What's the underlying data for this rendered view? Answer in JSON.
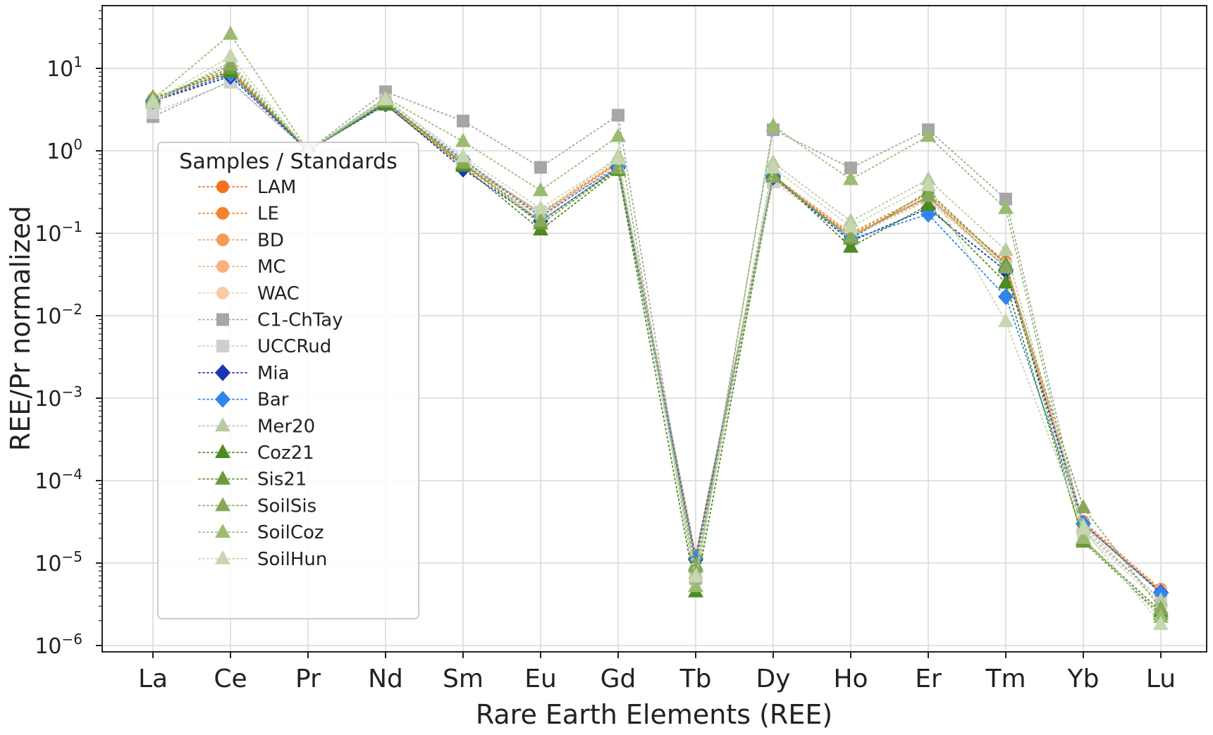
{
  "chart_data": {
    "type": "line",
    "xlabel": "Rare Earth Elements (REE)",
    "ylabel": "REE/Pr normalized",
    "yscale": "log",
    "ylim": [
      1e-06,
      50
    ],
    "yticks": [
      {
        "base": "10",
        "exp": "1",
        "value": 10
      },
      {
        "base": "10",
        "exp": "0",
        "value": 1
      },
      {
        "base": "10",
        "exp": "−1",
        "value": 0.1
      },
      {
        "base": "10",
        "exp": "−2",
        "value": 0.01
      },
      {
        "base": "10",
        "exp": "−3",
        "value": 0.001
      },
      {
        "base": "10",
        "exp": "−4",
        "value": 0.0001
      },
      {
        "base": "10",
        "exp": "−5",
        "value": 1e-05
      },
      {
        "base": "10",
        "exp": "−6",
        "value": 1e-06
      }
    ],
    "grid": true,
    "legend": {
      "title": "Samples / Standards",
      "placement": "upper-left"
    },
    "categories": [
      "La",
      "Ce",
      "Pr",
      "Nd",
      "Sm",
      "Eu",
      "Gd",
      "Tb",
      "Dy",
      "Ho",
      "Er",
      "Tm",
      "Yb",
      "Lu"
    ],
    "series": [
      {
        "name": "LAM",
        "color": "#f4701f",
        "marker": "circle",
        "values": [
          4.1,
          9.5,
          1,
          3.8,
          0.68,
          0.18,
          0.72,
          1.25e-05,
          0.48,
          0.095,
          0.27,
          0.045,
          3.2e-05,
          4.8e-06
        ]
      },
      {
        "name": "LE",
        "color": "#f4832f",
        "marker": "circle",
        "values": [
          4.2,
          9.2,
          1,
          3.9,
          0.7,
          0.17,
          0.7,
          1.2e-05,
          0.5,
          0.1,
          0.3,
          0.042,
          3e-05,
          4.6e-06
        ]
      },
      {
        "name": "BD",
        "color": "#f79a56",
        "marker": "circle",
        "values": [
          4.0,
          8.8,
          1,
          3.7,
          0.66,
          0.16,
          0.74,
          1.15e-05,
          0.46,
          0.092,
          0.26,
          0.04,
          2.9e-05,
          4.5e-06
        ]
      },
      {
        "name": "MC",
        "color": "#f8b07c",
        "marker": "circle",
        "values": [
          4.3,
          9.0,
          1,
          3.9,
          0.72,
          0.175,
          0.76,
          1.18e-05,
          0.5,
          0.098,
          0.28,
          0.043,
          3.1e-05,
          4.7e-06
        ]
      },
      {
        "name": "WAC",
        "color": "#f8cba5",
        "marker": "circle",
        "values": [
          4.0,
          8.5,
          1,
          3.6,
          0.64,
          0.15,
          0.7,
          1.1e-05,
          0.45,
          0.09,
          0.25,
          0.038,
          2.8e-05,
          4.4e-06
        ]
      },
      {
        "name": "C1-ChTay",
        "color": "#a6a6a6",
        "marker": "square",
        "values": [
          2.6,
          7.0,
          1,
          5.2,
          2.3,
          0.63,
          2.7,
          6.5e-06,
          1.8,
          0.62,
          1.8,
          0.26,
          2.5e-05,
          3.6e-06
        ]
      },
      {
        "name": "UCCRud",
        "color": "#cfcfcf",
        "marker": "square",
        "values": [
          2.9,
          6.8,
          1,
          4.1,
          0.75,
          0.18,
          0.62,
          7.2e-06,
          0.42,
          0.09,
          0.26,
          0.04,
          2.3e-05,
          3.3e-06
        ]
      },
      {
        "name": "Mia",
        "color": "#1936b3",
        "marker": "diamond",
        "values": [
          4.0,
          8.0,
          1,
          3.7,
          0.6,
          0.14,
          0.62,
          1.1e-05,
          0.48,
          0.08,
          0.2,
          0.035,
          3e-05,
          4.4e-06
        ]
      },
      {
        "name": "Bar",
        "color": "#2f86ef",
        "marker": "diamond",
        "values": [
          4.1,
          8.5,
          1,
          3.8,
          0.78,
          0.16,
          0.65,
          1.15e-05,
          0.5,
          0.085,
          0.17,
          0.017,
          3e-05,
          4.3e-06
        ]
      },
      {
        "name": "Mer20",
        "color": "#b9cba2",
        "marker": "triangle",
        "values": [
          3.8,
          12.0,
          1,
          4.3,
          0.8,
          0.17,
          0.85,
          7.5e-06,
          0.72,
          0.14,
          0.45,
          0.062,
          2.8e-05,
          3.5e-06
        ]
      },
      {
        "name": "Coz21",
        "color": "#4d8a1f",
        "marker": "triangle",
        "values": [
          4.4,
          9.0,
          1,
          3.6,
          0.65,
          0.11,
          0.58,
          4.5e-06,
          0.52,
          0.068,
          0.22,
          0.025,
          1.9e-05,
          2.6e-06
        ]
      },
      {
        "name": "Sis21",
        "color": "#6b9a3c",
        "marker": "triangle",
        "values": [
          4.3,
          10.0,
          1,
          3.9,
          0.7,
          0.13,
          0.6,
          9.5e-06,
          0.5,
          0.085,
          0.32,
          0.042,
          1.8e-05,
          2.4e-06
        ]
      },
      {
        "name": "SoilSis",
        "color": "#87a85a",
        "marker": "triangle",
        "values": [
          4.0,
          11.0,
          1,
          4.0,
          0.72,
          0.14,
          0.62,
          9e-06,
          0.48,
          0.09,
          0.28,
          0.038,
          4.7e-05,
          2.8e-06
        ]
      },
      {
        "name": "SoilCoz",
        "color": "#9bbb70",
        "marker": "triangle",
        "values": [
          4.2,
          26.0,
          1,
          4.4,
          1.3,
          0.33,
          1.5,
          5.2e-06,
          2.0,
          0.45,
          1.5,
          0.2,
          2e-05,
          2.2e-06
        ]
      },
      {
        "name": "SoilHun",
        "color": "#c6d7b0",
        "marker": "triangle",
        "values": [
          3.9,
          14.0,
          1,
          4.2,
          0.85,
          0.2,
          0.8,
          6.8e-06,
          0.62,
          0.12,
          0.38,
          0.0085,
          2.6e-05,
          1.8e-06
        ]
      }
    ]
  }
}
